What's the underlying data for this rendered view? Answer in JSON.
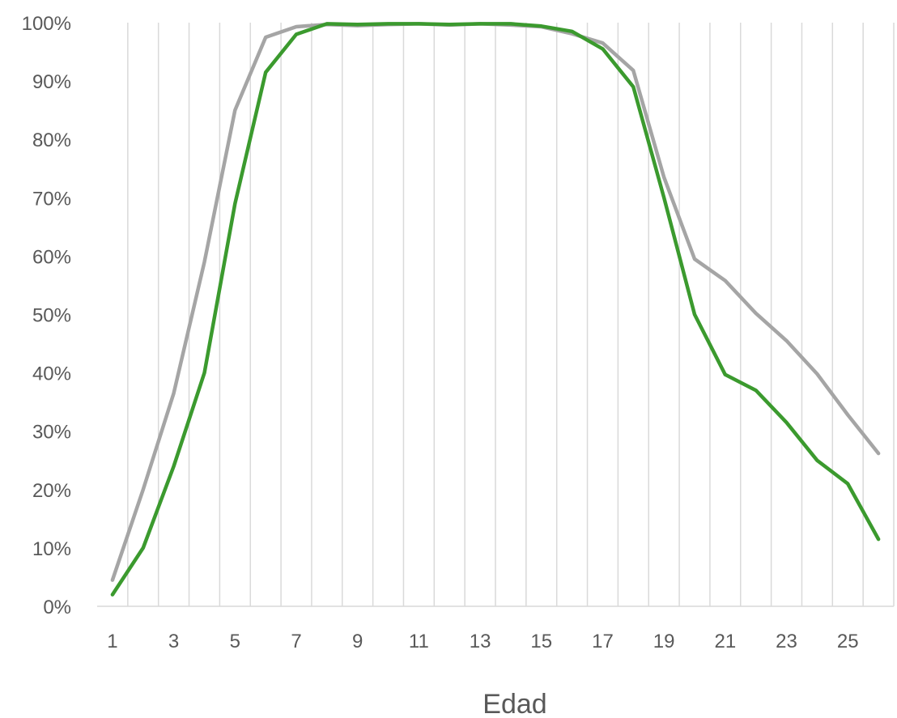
{
  "chart_data": {
    "type": "line",
    "xlabel": "Edad",
    "ylabel": "",
    "title": "",
    "x": [
      1,
      2,
      3,
      4,
      5,
      6,
      7,
      8,
      9,
      10,
      11,
      12,
      13,
      14,
      15,
      16,
      17,
      18,
      19,
      20,
      21,
      22,
      23,
      24,
      25,
      26
    ],
    "x_tick_labels": [
      "1",
      "3",
      "5",
      "7",
      "9",
      "11",
      "13",
      "15",
      "17",
      "19",
      "21",
      "23",
      "25"
    ],
    "y_tick_labels": [
      "0%",
      "10%",
      "20%",
      "30%",
      "40%",
      "50%",
      "60%",
      "70%",
      "80%",
      "90%",
      "100%"
    ],
    "ylim": [
      0,
      1
    ],
    "xlim": [
      1,
      26
    ],
    "grid": "vertical",
    "legend": "none",
    "series": [
      {
        "color": "#a5a5a5",
        "values": [
          0.045,
          0.2,
          0.365,
          0.59,
          0.85,
          0.975,
          0.993,
          0.997,
          0.995,
          0.997,
          0.998,
          0.996,
          0.998,
          0.996,
          0.993,
          0.981,
          0.965,
          0.918,
          0.735,
          0.595,
          0.558,
          0.502,
          0.455,
          0.398,
          0.328,
          0.262
        ]
      },
      {
        "color": "#3b9a2e",
        "values": [
          0.02,
          0.1,
          0.24,
          0.4,
          0.69,
          0.915,
          0.98,
          0.998,
          0.997,
          0.998,
          0.998,
          0.997,
          0.998,
          0.998,
          0.994,
          0.985,
          0.955,
          0.89,
          0.7,
          0.5,
          0.397,
          0.37,
          0.315,
          0.25,
          0.21,
          0.115
        ]
      }
    ]
  }
}
